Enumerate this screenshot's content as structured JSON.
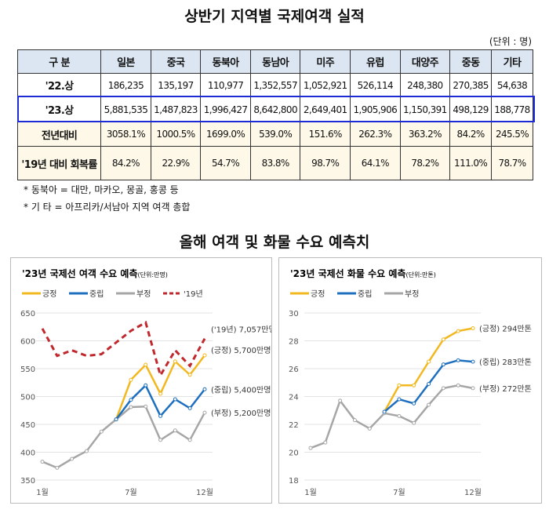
{
  "title": "상반기 지역별 국제여객 실적",
  "unit": "(단위 : 명)",
  "table": {
    "headers": [
      "구 분",
      "일본",
      "중국",
      "동북아",
      "동남아",
      "미주",
      "유럽",
      "대양주",
      "중동",
      "기타"
    ],
    "rows": [
      [
        "'22.상",
        "186,235",
        "135,197",
        "110,977",
        "1,352,557",
        "1,052,921",
        "526,114",
        "248,380",
        "270,385",
        "54,638"
      ],
      [
        "'23.상",
        "5,881,535",
        "1,487,823",
        "1,996,427",
        "8,642,800",
        "2,649,401",
        "1,905,906",
        "1,150,391",
        "498,129",
        "188,778"
      ],
      [
        "전년대비",
        "3058.1%",
        "1000.5%",
        "1699.0%",
        "539.0%",
        "151.6%",
        "262.3%",
        "363.2%",
        "84.2%",
        "245.5%"
      ],
      [
        "'19년 대비 회복률",
        "84.2%",
        "22.9%",
        "54.7%",
        "83.8%",
        "98.7%",
        "64.1%",
        "78.2%",
        "111.0%",
        "78.7%"
      ]
    ],
    "highlight_color": "#1d2bd6"
  },
  "notes": [
    "* 동북아 = 대만, 마카오, 몽골, 홍콩 등",
    "* 기   타 = 아프리카/서남아 지역 여객 총합"
  ],
  "section_title": "올해 여객 및 화물 수요 예측치",
  "chart_data": [
    {
      "type": "line",
      "title": "'23년 국제선 여객 수요 예측",
      "unit": "(단위:만명)",
      "ylim": [
        350,
        650
      ],
      "yticks": [
        350,
        400,
        450,
        500,
        550,
        600,
        650
      ],
      "x": [
        1,
        2,
        3,
        4,
        5,
        6,
        7,
        8,
        9,
        10,
        11,
        12
      ],
      "xtick_labels": {
        "1": "1월",
        "7": "7월",
        "12": "12월"
      },
      "grid": true,
      "legend": "top-left",
      "series": [
        {
          "name": "긍정",
          "color": "#f2b81f",
          "x": [
            6,
            7,
            8,
            9,
            10,
            11,
            12
          ],
          "values": [
            459,
            530,
            557,
            505,
            563,
            539,
            574
          ],
          "label": "(긍정) 5,700만명"
        },
        {
          "name": "중립",
          "color": "#1f6fbf",
          "x": [
            6,
            7,
            8,
            9,
            10,
            11,
            12
          ],
          "values": [
            459,
            494,
            520,
            465,
            495,
            479,
            513
          ],
          "label": "(중립) 5,400만명"
        },
        {
          "name": "부정",
          "color": "#a6a6a6",
          "x": [
            1,
            2,
            3,
            4,
            5,
            6,
            7,
            8,
            9,
            10,
            11,
            12
          ],
          "values": [
            383,
            372,
            388,
            402,
            437,
            459,
            481,
            482,
            422,
            439,
            422,
            471
          ],
          "label": "(부정) 5,200만명"
        },
        {
          "name": "'19년",
          "color": "#c0282d",
          "dashed": true,
          "x": [
            1,
            2,
            3,
            4,
            5,
            6,
            7,
            8,
            9,
            10,
            11,
            12
          ],
          "values": [
            622,
            573,
            583,
            573,
            576,
            597,
            618,
            633,
            538,
            583,
            555,
            604
          ],
          "label": "('19년) 7,057만명"
        }
      ]
    },
    {
      "type": "line",
      "title": "'23년 국제선 화물 수요 예측",
      "unit": "(단위:만톤)",
      "ylim": [
        18,
        30
      ],
      "yticks": [
        18,
        20,
        22,
        24,
        26,
        28,
        30
      ],
      "x": [
        1,
        2,
        3,
        4,
        5,
        6,
        7,
        8,
        9,
        10,
        11,
        12
      ],
      "xtick_labels": {
        "1": "1월",
        "7": "7월",
        "12": "12월"
      },
      "grid": true,
      "legend": "top-left",
      "series": [
        {
          "name": "긍정",
          "color": "#f2b81f",
          "x": [
            6,
            7,
            8,
            9,
            10,
            11,
            12
          ],
          "values": [
            22.9,
            24.8,
            24.8,
            26.5,
            28.1,
            28.7,
            28.9
          ],
          "label": "(긍정) 294만톤"
        },
        {
          "name": "중립",
          "color": "#1f6fbf",
          "x": [
            6,
            7,
            8,
            9,
            10,
            11,
            12
          ],
          "values": [
            22.9,
            23.8,
            23.5,
            24.9,
            26.3,
            26.6,
            26.5
          ],
          "label": "(중립) 283만톤"
        },
        {
          "name": "부정",
          "color": "#a6a6a6",
          "x": [
            1,
            2,
            3,
            4,
            5,
            6,
            7,
            8,
            9,
            10,
            11,
            12
          ],
          "values": [
            20.3,
            20.7,
            23.7,
            22.3,
            21.7,
            22.8,
            22.6,
            22.1,
            23.4,
            24.6,
            24.8,
            24.6
          ],
          "label": "(부정) 272만톤"
        }
      ]
    }
  ]
}
